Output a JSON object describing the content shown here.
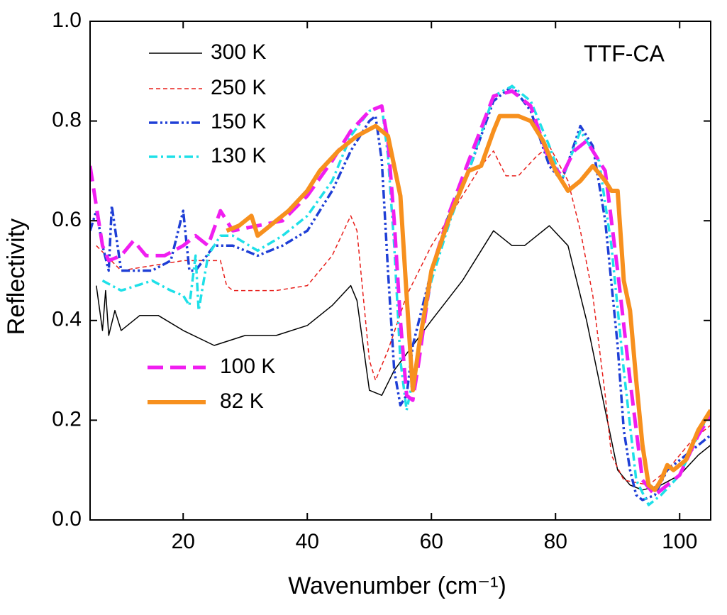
{
  "chart_data": {
    "type": "line",
    "x_label": "Wavenumber (cm⁻¹)",
    "y_label": "Reflectivity",
    "annotation": "TTF-CA",
    "xlim": [
      5,
      105
    ],
    "ylim": [
      0,
      1
    ],
    "xticks": [
      20,
      40,
      60,
      80,
      100
    ],
    "yticks": [
      {
        "value": 0,
        "label": "0.0"
      },
      {
        "value": 0.2,
        "label": "0.2"
      },
      {
        "value": 0.4,
        "label": "0.4"
      },
      {
        "value": 0.6,
        "label": "0.6"
      },
      {
        "value": 0.8,
        "label": "0.8"
      },
      {
        "value": 1,
        "label": "1.0"
      }
    ],
    "series": [
      {
        "name": "300 K",
        "color": "#000000",
        "dash": "solid",
        "x": [
          6,
          7,
          7.5,
          8,
          9,
          10,
          13,
          16,
          20,
          25,
          30,
          35,
          40,
          44,
          47,
          48,
          50,
          52,
          54,
          57,
          60,
          65,
          70,
          73,
          75,
          79,
          82,
          85,
          88,
          90,
          92,
          94,
          97,
          100,
          103,
          105
        ],
        "values": [
          0.47,
          0.38,
          0.46,
          0.37,
          0.42,
          0.38,
          0.41,
          0.41,
          0.38,
          0.35,
          0.37,
          0.37,
          0.39,
          0.43,
          0.47,
          0.44,
          0.26,
          0.25,
          0.3,
          0.35,
          0.4,
          0.48,
          0.58,
          0.55,
          0.55,
          0.59,
          0.55,
          0.4,
          0.22,
          0.1,
          0.07,
          0.06,
          0.07,
          0.09,
          0.13,
          0.15
        ]
      },
      {
        "name": "250 K",
        "color": "#e8201c",
        "dash": "short",
        "x": [
          6,
          10,
          20,
          26,
          27,
          28,
          35,
          40,
          44,
          47,
          48,
          49,
          50,
          51,
          53,
          56,
          60,
          65,
          68,
          70,
          72,
          74,
          77,
          79,
          82,
          84,
          86,
          88,
          89,
          91,
          95,
          98,
          102,
          105
        ],
        "values": [
          0.55,
          0.5,
          0.52,
          0.52,
          0.47,
          0.46,
          0.46,
          0.47,
          0.53,
          0.61,
          0.58,
          0.45,
          0.32,
          0.28,
          0.34,
          0.45,
          0.55,
          0.65,
          0.71,
          0.74,
          0.69,
          0.69,
          0.73,
          0.75,
          0.68,
          0.58,
          0.45,
          0.25,
          0.13,
          0.08,
          0.07,
          0.1,
          0.16,
          0.19
        ]
      },
      {
        "name": "150 K",
        "color": "#1f3fd6",
        "dash": "dashdotdot",
        "x": [
          5,
          6,
          7,
          8,
          8.5,
          10,
          15,
          18,
          20,
          21,
          22,
          25,
          28,
          32,
          36,
          40,
          44,
          47,
          50,
          51,
          52,
          53,
          54,
          55,
          56,
          57,
          60,
          63,
          66,
          70,
          73,
          76,
          79,
          81,
          84,
          86,
          88,
          90,
          91,
          92,
          93,
          94,
          96,
          98,
          102,
          105
        ],
        "values": [
          0.58,
          0.62,
          0.55,
          0.5,
          0.63,
          0.5,
          0.5,
          0.52,
          0.62,
          0.5,
          0.5,
          0.55,
          0.55,
          0.53,
          0.55,
          0.58,
          0.66,
          0.74,
          0.8,
          0.81,
          0.72,
          0.5,
          0.3,
          0.23,
          0.25,
          0.35,
          0.5,
          0.62,
          0.7,
          0.84,
          0.87,
          0.82,
          0.71,
          0.68,
          0.79,
          0.75,
          0.6,
          0.35,
          0.18,
          0.1,
          0.05,
          0.04,
          0.05,
          0.1,
          0.14,
          0.17
        ]
      },
      {
        "name": "130 K",
        "color": "#1ee0e8",
        "dash": "dashdot",
        "x": [
          7,
          10,
          15,
          18,
          20,
          21,
          22,
          22.5,
          24,
          26,
          28,
          32,
          36,
          40,
          44,
          47,
          50,
          52,
          53,
          54,
          55,
          56,
          57,
          60,
          63,
          66,
          70,
          73,
          76,
          79,
          81,
          84,
          87,
          89,
          91,
          93,
          95,
          97,
          100,
          103,
          105
        ],
        "values": [
          0.48,
          0.46,
          0.48,
          0.46,
          0.45,
          0.43,
          0.53,
          0.42,
          0.53,
          0.57,
          0.57,
          0.54,
          0.57,
          0.61,
          0.68,
          0.77,
          0.82,
          0.83,
          0.73,
          0.55,
          0.32,
          0.22,
          0.28,
          0.48,
          0.6,
          0.7,
          0.85,
          0.87,
          0.84,
          0.75,
          0.68,
          0.78,
          0.72,
          0.55,
          0.3,
          0.08,
          0.03,
          0.05,
          0.09,
          0.17,
          0.22
        ]
      },
      {
        "name": "100 K",
        "color": "#f01ef0",
        "dash": "long",
        "x": [
          5,
          5.5,
          7,
          8,
          10,
          12,
          14,
          17,
          20,
          22,
          24,
          26,
          28,
          32,
          36,
          40,
          44,
          47,
          50,
          52,
          53,
          54,
          55,
          56,
          57,
          58,
          60,
          63,
          66,
          70,
          73,
          76,
          79,
          81,
          83,
          85,
          88,
          90,
          92,
          94,
          96,
          98,
          100,
          103,
          105
        ],
        "values": [
          0.71,
          0.67,
          0.55,
          0.52,
          0.53,
          0.56,
          0.53,
          0.53,
          0.55,
          0.57,
          0.55,
          0.62,
          0.58,
          0.59,
          0.6,
          0.65,
          0.72,
          0.78,
          0.82,
          0.83,
          0.76,
          0.6,
          0.4,
          0.25,
          0.24,
          0.32,
          0.5,
          0.62,
          0.72,
          0.85,
          0.86,
          0.83,
          0.72,
          0.69,
          0.74,
          0.76,
          0.7,
          0.5,
          0.28,
          0.08,
          0.05,
          0.07,
          0.09,
          0.17,
          0.21
        ]
      },
      {
        "name": "82 K",
        "color": "#f7901e",
        "dash": "thick",
        "x": [
          27,
          29,
          31,
          32,
          34,
          37,
          40,
          42,
          45,
          48,
          51,
          53,
          55,
          56,
          57,
          58,
          60,
          63,
          66,
          68,
          70,
          71,
          74,
          76,
          78,
          80,
          82,
          84,
          86,
          88,
          89,
          90,
          91,
          92,
          93,
          94,
          95,
          96,
          97,
          98,
          99,
          101,
          103,
          105
        ],
        "values": [
          0.58,
          0.59,
          0.61,
          0.57,
          0.59,
          0.62,
          0.66,
          0.7,
          0.74,
          0.77,
          0.79,
          0.77,
          0.65,
          0.45,
          0.26,
          0.35,
          0.5,
          0.61,
          0.7,
          0.71,
          0.78,
          0.81,
          0.81,
          0.8,
          0.76,
          0.7,
          0.66,
          0.68,
          0.71,
          0.68,
          0.66,
          0.66,
          0.48,
          0.42,
          0.28,
          0.15,
          0.07,
          0.06,
          0.08,
          0.11,
          0.1,
          0.12,
          0.18,
          0.22
        ]
      }
    ]
  }
}
